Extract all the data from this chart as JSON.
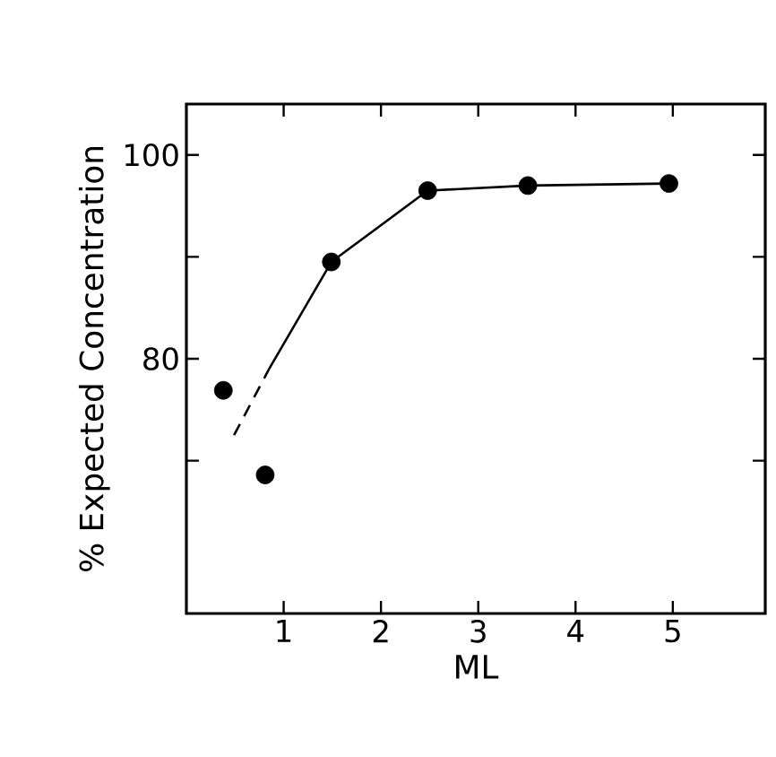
{
  "chart_data": {
    "type": "scatter",
    "xlabel": "ML",
    "ylabel": "% Expected Concentration",
    "xlim": [
      0,
      5.95
    ],
    "ylim": [
      55,
      105
    ],
    "xticks": [
      1,
      2,
      3,
      4,
      5
    ],
    "yticks": [
      {
        "value": 70,
        "label": null
      },
      80,
      {
        "value": 90,
        "label": null
      },
      100
    ],
    "series": [
      {
        "type": "scatter",
        "marker": "circle",
        "color": "#000000",
        "x": [
          0.38,
          0.81,
          1.49,
          2.48,
          3.51,
          4.96
        ],
        "values": [
          76.9,
          68.6,
          89.5,
          96.5,
          97.0,
          97.2
        ]
      },
      {
        "type": "line",
        "color": "#000000",
        "line_style": "dashed",
        "marker": "none",
        "x": [
          0.49,
          0.85
        ],
        "values": [
          72.5,
          79.0
        ]
      },
      {
        "type": "line",
        "color": "#000000",
        "line_style": "solid",
        "marker": "none",
        "x": [
          0.85,
          1.49,
          2.48,
          3.51,
          4.96
        ],
        "values": [
          79.0,
          89.5,
          96.5,
          97.0,
          97.2
        ]
      }
    ]
  }
}
